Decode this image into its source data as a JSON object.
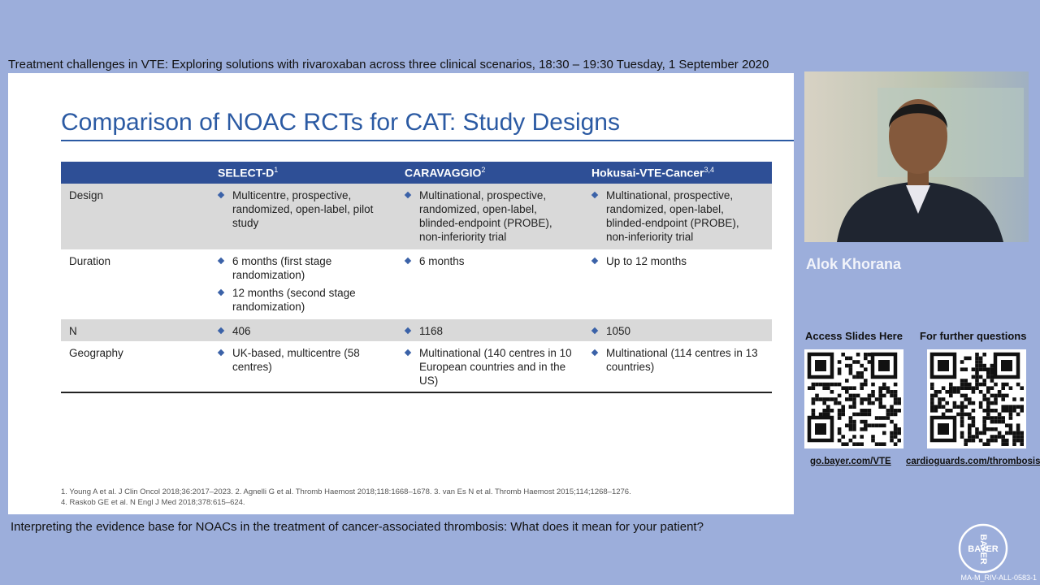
{
  "header": {
    "title": "Treatment challenges in VTE: Exploring solutions with rivaroxaban across three clinical scenarios, 18:30 – 19:30 Tuesday, 1 September 2020"
  },
  "slide": {
    "title": "Comparison of NOAC RCTs for CAT: Study Designs",
    "table": {
      "columns": [
        {
          "text": "SELECT-D",
          "sup": "1"
        },
        {
          "text": "CARAVAGGIO",
          "sup": "2"
        },
        {
          "text": "Hokusai-VTE-Cancer",
          "sup": "3,4"
        }
      ],
      "rows": [
        {
          "label": "Design",
          "cells": [
            [
              "Multicentre, prospective, randomized, open-label, pilot study"
            ],
            [
              "Multinational, prospective, randomized, open-label, blinded-endpoint (PROBE), non-inferiority trial"
            ],
            [
              "Multinational, prospective, randomized, open-label, blinded-endpoint (PROBE), non-inferiority trial"
            ]
          ]
        },
        {
          "label": "Duration",
          "cells": [
            [
              "6 months (first stage randomization)",
              "12 months (second stage randomization)"
            ],
            [
              "6 months"
            ],
            [
              "Up to 12 months"
            ]
          ]
        },
        {
          "label": "N",
          "cells": [
            [
              "406"
            ],
            [
              "1168"
            ],
            [
              "1050"
            ]
          ]
        },
        {
          "label": "Geography",
          "cells": [
            [
              "UK-based, multicentre (58 centres)"
            ],
            [
              "Multinational (140 centres in 10 European countries and in the US)"
            ],
            [
              "Multinational (114 centres in 13 countries)"
            ]
          ]
        }
      ]
    },
    "footnotes": [
      "1. Young A et al. J Clin Oncol 2018;36:2017–2023. 2. Agnelli G et al. Thromb Haemost 2018;118:1668–1678. 3. van Es N et al. Thromb Haemost 2015;114;1268–1276.",
      "4. Raskob GE et al. N Engl J Med 2018;378:615–624."
    ]
  },
  "caption": "Interpreting the evidence base for NOACs in the treatment of cancer-associated thrombosis: What does it mean for your patient?",
  "speaker": {
    "name": "Alok Khorana"
  },
  "qr": [
    {
      "label": "Access  Slides Here",
      "link": "go.bayer.com/VTE"
    },
    {
      "label": "For further questions",
      "link": "cardioguards.com/thrombosis"
    }
  ],
  "logo": {
    "text": "BAYER"
  },
  "code": "MA-M_RIV-ALL-0583-1"
}
